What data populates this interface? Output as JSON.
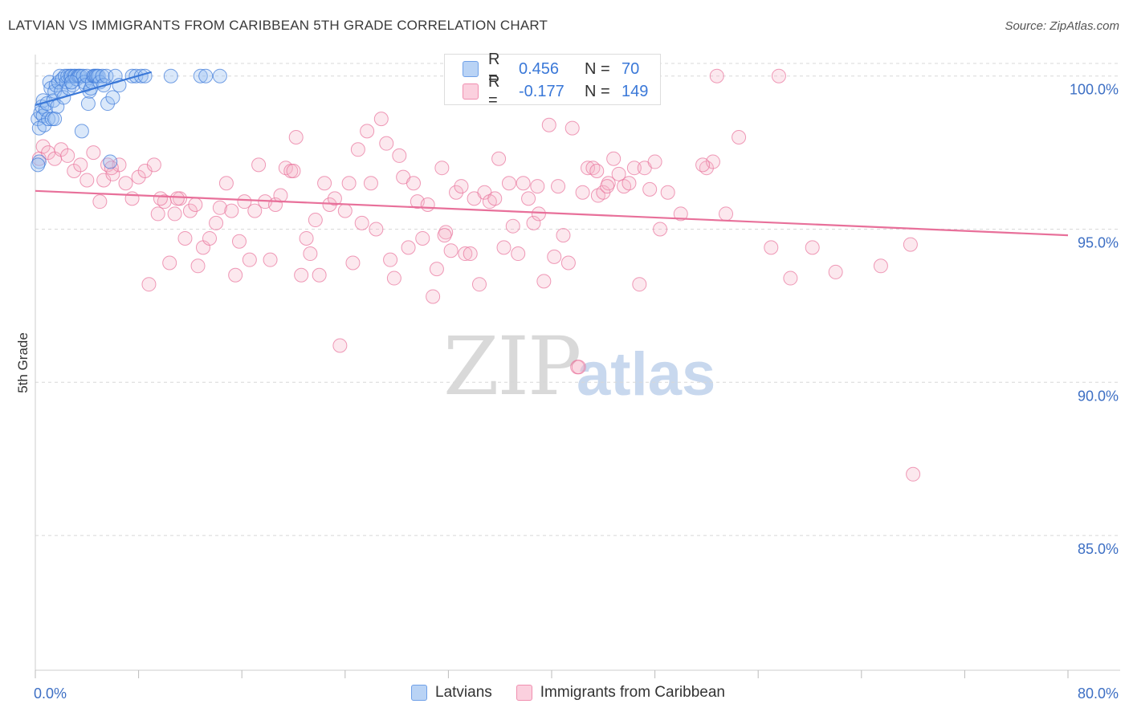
{
  "title": "LATVIAN VS IMMIGRANTS FROM CARIBBEAN 5TH GRADE CORRELATION CHART",
  "source": "Source: ZipAtlas.com",
  "watermark": {
    "zip": "ZIP",
    "atlas": "atlas"
  },
  "legend": {
    "rows": [
      {
        "r_label": "R =",
        "r_value": "0.456",
        "n_label": "N =",
        "n_value": "70",
        "color": "#6fa0e8",
        "fill": "#b9d3f5"
      },
      {
        "r_label": "R =",
        "r_value": "-0.177",
        "n_label": "N =",
        "n_value": "149",
        "color": "#f08fb0",
        "fill": "#fbd0de"
      }
    ]
  },
  "bottom_legend": [
    "Latvians",
    "Immigrants from Caribbean"
  ],
  "chart_data": {
    "type": "scatter",
    "ylabel": "5th Grade",
    "xlim": [
      0,
      80
    ],
    "ylim": [
      80.6,
      100.7
    ],
    "x_tick_labels": [
      "0.0%",
      "80.0%"
    ],
    "y_ticks": [
      100,
      95,
      90,
      85
    ],
    "y_tick_labels": [
      "100.0%",
      "95.0%",
      "90.0%",
      "85.0%"
    ],
    "grid": true,
    "series": [
      {
        "name": "Latvians",
        "color": "#3a78d8",
        "fill": "rgba(150,190,240,0.35)",
        "trend": {
          "x": [
            0.0,
            9.0
          ],
          "y": [
            99.05,
            100.13
          ]
        },
        "points": [
          [
            0.2,
            98.6
          ],
          [
            0.3,
            98.3
          ],
          [
            0.3,
            97.2
          ],
          [
            0.4,
            98.8
          ],
          [
            0.5,
            99.0
          ],
          [
            0.6,
            98.7
          ],
          [
            0.6,
            99.2
          ],
          [
            0.7,
            98.4
          ],
          [
            0.8,
            98.9
          ],
          [
            0.9,
            99.1
          ],
          [
            1.0,
            98.6
          ],
          [
            1.1,
            99.8
          ],
          [
            1.2,
            99.6
          ],
          [
            1.3,
            98.6
          ],
          [
            1.4,
            99.2
          ],
          [
            1.5,
            99.5
          ],
          [
            1.6,
            99.7
          ],
          [
            1.7,
            99.0
          ],
          [
            1.8,
            99.8
          ],
          [
            1.9,
            100.0
          ],
          [
            2.0,
            99.5
          ],
          [
            2.1,
            99.9
          ],
          [
            2.2,
            99.3
          ],
          [
            2.3,
            100.0
          ],
          [
            2.4,
            99.8
          ],
          [
            2.5,
            100.0
          ],
          [
            2.6,
            99.6
          ],
          [
            2.7,
            100.0
          ],
          [
            2.8,
            100.0
          ],
          [
            2.9,
            99.7
          ],
          [
            3.0,
            100.0
          ],
          [
            3.1,
            100.0
          ],
          [
            3.2,
            99.9
          ],
          [
            3.3,
            100.0
          ],
          [
            3.4,
            100.0
          ],
          [
            3.5,
            100.0
          ],
          [
            3.6,
            98.2
          ],
          [
            3.7,
            100.0
          ],
          [
            3.8,
            99.8
          ],
          [
            3.9,
            99.7
          ],
          [
            4.0,
            100.0
          ],
          [
            4.1,
            99.1
          ],
          [
            4.2,
            99.5
          ],
          [
            4.3,
            99.6
          ],
          [
            4.4,
            99.8
          ],
          [
            4.5,
            100.0
          ],
          [
            4.6,
            100.0
          ],
          [
            4.7,
            100.0
          ],
          [
            4.8,
            100.0
          ],
          [
            4.9,
            100.0
          ],
          [
            5.0,
            99.8
          ],
          [
            5.2,
            100.0
          ],
          [
            5.3,
            99.7
          ],
          [
            5.5,
            100.0
          ],
          [
            5.6,
            99.1
          ],
          [
            5.8,
            97.2
          ],
          [
            6.0,
            99.3
          ],
          [
            6.2,
            100.0
          ],
          [
            6.5,
            99.7
          ],
          [
            7.5,
            100.0
          ],
          [
            7.8,
            100.0
          ],
          [
            8.2,
            100.0
          ],
          [
            8.5,
            100.0
          ],
          [
            10.5,
            100.0
          ],
          [
            12.8,
            100.0
          ],
          [
            13.2,
            100.0
          ],
          [
            14.3,
            100.0
          ],
          [
            1.5,
            98.6
          ],
          [
            2.8,
            99.8
          ],
          [
            0.2,
            97.1
          ]
        ]
      },
      {
        "name": "Immigrants from Caribbean",
        "color": "#e8709a",
        "fill": "rgba(245,180,200,0.3)",
        "trend": {
          "x": [
            0.0,
            80.0
          ],
          "y": [
            96.25,
            94.8
          ]
        },
        "points": [
          [
            0.3,
            97.3
          ],
          [
            0.6,
            97.7
          ],
          [
            1.0,
            97.5
          ],
          [
            1.5,
            97.3
          ],
          [
            2.0,
            97.6
          ],
          [
            2.5,
            97.4
          ],
          [
            3.0,
            96.9
          ],
          [
            3.5,
            97.1
          ],
          [
            4.0,
            96.6
          ],
          [
            4.5,
            97.5
          ],
          [
            5.0,
            95.9
          ],
          [
            5.3,
            96.6
          ],
          [
            5.6,
            97.1
          ],
          [
            6.0,
            96.8
          ],
          [
            6.5,
            97.1
          ],
          [
            7.0,
            96.5
          ],
          [
            7.5,
            96.0
          ],
          [
            8.0,
            96.7
          ],
          [
            8.5,
            96.9
          ],
          [
            8.8,
            93.2
          ],
          [
            9.2,
            97.1
          ],
          [
            9.5,
            95.5
          ],
          [
            10.0,
            95.9
          ],
          [
            10.4,
            93.9
          ],
          [
            10.8,
            95.5
          ],
          [
            11.2,
            96.0
          ],
          [
            11.6,
            94.7
          ],
          [
            12.0,
            95.6
          ],
          [
            12.4,
            95.8
          ],
          [
            12.6,
            93.8
          ],
          [
            13.0,
            94.4
          ],
          [
            13.5,
            94.7
          ],
          [
            14.0,
            95.2
          ],
          [
            14.3,
            95.7
          ],
          [
            14.8,
            96.5
          ],
          [
            15.2,
            95.6
          ],
          [
            15.5,
            93.5
          ],
          [
            15.8,
            94.6
          ],
          [
            16.2,
            95.9
          ],
          [
            16.6,
            94.0
          ],
          [
            17.0,
            95.6
          ],
          [
            17.3,
            97.1
          ],
          [
            17.8,
            95.9
          ],
          [
            18.2,
            94.0
          ],
          [
            18.6,
            95.8
          ],
          [
            19.0,
            96.1
          ],
          [
            19.4,
            97.0
          ],
          [
            19.8,
            96.9
          ],
          [
            20.2,
            98.0
          ],
          [
            20.6,
            93.5
          ],
          [
            21.0,
            94.7
          ],
          [
            21.3,
            94.2
          ],
          [
            21.7,
            95.3
          ],
          [
            22.0,
            93.5
          ],
          [
            22.4,
            96.5
          ],
          [
            22.8,
            95.8
          ],
          [
            23.2,
            96.0
          ],
          [
            23.6,
            91.2
          ],
          [
            24.0,
            95.6
          ],
          [
            24.3,
            96.5
          ],
          [
            24.6,
            93.9
          ],
          [
            25.0,
            97.6
          ],
          [
            25.3,
            95.2
          ],
          [
            25.7,
            98.2
          ],
          [
            26.0,
            96.5
          ],
          [
            26.4,
            95.0
          ],
          [
            26.8,
            98.6
          ],
          [
            27.2,
            97.8
          ],
          [
            27.5,
            94.0
          ],
          [
            27.8,
            93.4
          ],
          [
            28.2,
            97.4
          ],
          [
            28.5,
            96.7
          ],
          [
            28.9,
            94.4
          ],
          [
            29.3,
            96.5
          ],
          [
            29.6,
            95.9
          ],
          [
            30.0,
            94.7
          ],
          [
            30.4,
            95.8
          ],
          [
            30.8,
            92.8
          ],
          [
            31.1,
            93.7
          ],
          [
            31.5,
            97.0
          ],
          [
            31.8,
            94.9
          ],
          [
            32.2,
            94.3
          ],
          [
            32.6,
            96.2
          ],
          [
            33.0,
            96.4
          ],
          [
            33.3,
            94.2
          ],
          [
            33.7,
            94.2
          ],
          [
            34.0,
            96.0
          ],
          [
            34.4,
            93.2
          ],
          [
            34.8,
            96.2
          ],
          [
            35.2,
            95.9
          ],
          [
            35.6,
            96.0
          ],
          [
            35.9,
            97.3
          ],
          [
            36.3,
            94.4
          ],
          [
            36.7,
            96.5
          ],
          [
            37.0,
            95.1
          ],
          [
            37.4,
            94.2
          ],
          [
            37.8,
            96.5
          ],
          [
            38.2,
            96.0
          ],
          [
            38.6,
            95.2
          ],
          [
            39.0,
            95.5
          ],
          [
            39.4,
            93.3
          ],
          [
            39.8,
            98.4
          ],
          [
            40.2,
            94.1
          ],
          [
            40.5,
            96.4
          ],
          [
            40.9,
            94.8
          ],
          [
            41.3,
            93.9
          ],
          [
            41.6,
            98.3
          ],
          [
            42.0,
            90.5
          ],
          [
            42.4,
            96.2
          ],
          [
            42.8,
            97.0
          ],
          [
            43.2,
            97.0
          ],
          [
            43.6,
            96.1
          ],
          [
            44.0,
            96.2
          ],
          [
            44.4,
            96.5
          ],
          [
            44.8,
            97.3
          ],
          [
            45.2,
            96.8
          ],
          [
            45.6,
            96.4
          ],
          [
            46.0,
            96.5
          ],
          [
            46.4,
            97.0
          ],
          [
            46.8,
            93.2
          ],
          [
            47.2,
            97.0
          ],
          [
            47.6,
            96.3
          ],
          [
            48.0,
            97.2
          ],
          [
            48.4,
            95.0
          ],
          [
            49.0,
            96.2
          ],
          [
            50.0,
            95.5
          ],
          [
            52.0,
            97.0
          ],
          [
            52.5,
            97.2
          ],
          [
            53.5,
            95.5
          ],
          [
            54.5,
            98.0
          ],
          [
            57.0,
            94.4
          ],
          [
            58.5,
            93.4
          ],
          [
            60.2,
            94.4
          ],
          [
            62.0,
            93.6
          ],
          [
            65.5,
            93.8
          ],
          [
            67.8,
            94.5
          ],
          [
            68.0,
            87.0
          ],
          [
            52.8,
            100.0
          ],
          [
            57.6,
            100.0
          ],
          [
            42.1,
            90.5
          ],
          [
            5.9,
            97.0
          ],
          [
            9.7,
            96.0
          ],
          [
            11.0,
            96.0
          ],
          [
            20.0,
            96.9
          ],
          [
            31.7,
            94.8
          ],
          [
            38.9,
            96.4
          ],
          [
            43.5,
            96.9
          ],
          [
            51.7,
            97.1
          ],
          [
            44.3,
            96.4
          ]
        ]
      }
    ]
  }
}
